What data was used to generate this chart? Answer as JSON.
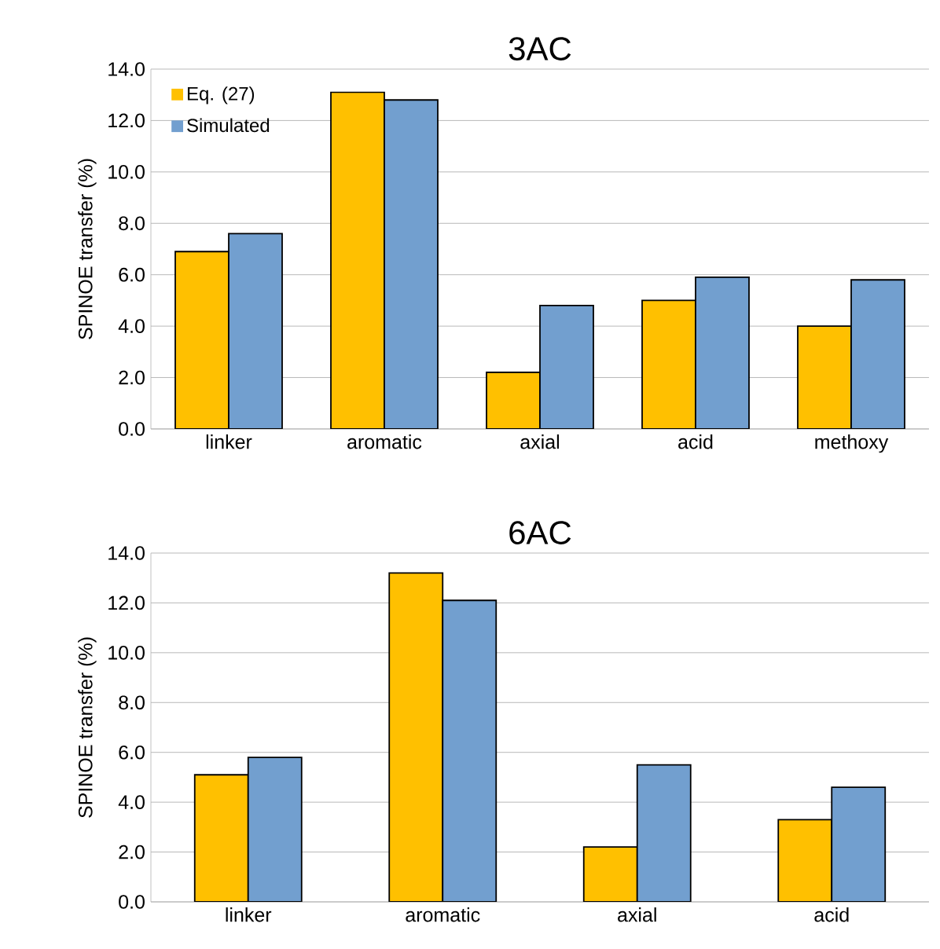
{
  "chart_data": [
    {
      "type": "bar",
      "title": "3AC",
      "ylabel": "SPINOE transfer (%)",
      "categories": [
        "linker",
        "aromatic",
        "axial",
        "acid",
        "methoxy"
      ],
      "series": [
        {
          "name": "Eq. (27)",
          "color": "#ffc000",
          "values": [
            6.9,
            13.1,
            2.2,
            5.0,
            4.0
          ]
        },
        {
          "name": "Simulated",
          "color": "#729fcf",
          "values": [
            7.6,
            12.8,
            4.8,
            5.9,
            5.8
          ]
        }
      ],
      "ylim": [
        0,
        14
      ],
      "yticks": [
        {
          "value": 0,
          "label": "0.0"
        },
        {
          "value": 2,
          "label": "2.0"
        },
        {
          "value": 4,
          "label": "4.0"
        },
        {
          "value": 6,
          "label": "6.0"
        },
        {
          "value": 8,
          "label": "8.0"
        },
        {
          "value": 10,
          "label": "10.0"
        },
        {
          "value": 12,
          "label": "12.0"
        },
        {
          "value": 14,
          "label": "14.0"
        }
      ],
      "grid": "y",
      "legend": "top left"
    },
    {
      "type": "bar",
      "title": "6AC",
      "ylabel": "SPINOE transfer (%)",
      "categories": [
        "linker",
        "aromatic",
        "axial",
        "acid"
      ],
      "series": [
        {
          "color": "#ffc000",
          "values": [
            5.1,
            13.2,
            2.2,
            3.3
          ]
        },
        {
          "color": "#729fcf",
          "values": [
            5.8,
            12.1,
            5.5,
            4.6
          ]
        }
      ],
      "ylim": [
        0,
        14
      ],
      "yticks": [
        {
          "value": 0,
          "label": "0.0"
        },
        {
          "value": 2,
          "label": "2.0"
        },
        {
          "value": 4,
          "label": "4.0"
        },
        {
          "value": 6,
          "label": "6.0"
        },
        {
          "value": 8,
          "label": "8.0"
        },
        {
          "value": 10,
          "label": "10.0"
        },
        {
          "value": 12,
          "label": "12.0"
        },
        {
          "value": 14,
          "label": "14.0"
        }
      ],
      "grid": "y"
    }
  ]
}
